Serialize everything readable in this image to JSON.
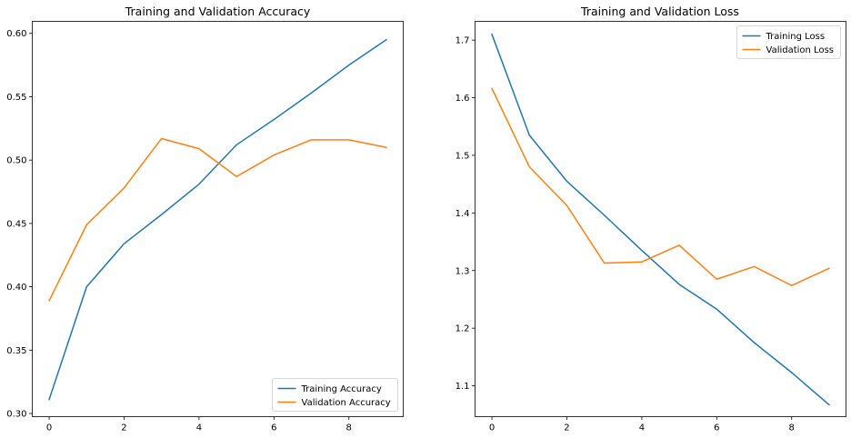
{
  "chart_data": [
    {
      "type": "line",
      "title": "Training and Validation Accuracy",
      "xlabel": "",
      "ylabel": "",
      "xlim": [
        -0.45,
        9.45
      ],
      "ylim": [
        0.2975,
        0.6095
      ],
      "xticks": [
        0,
        2,
        4,
        6,
        8
      ],
      "yticks": [
        0.3,
        0.35,
        0.4,
        0.45,
        0.5,
        0.55,
        0.6
      ],
      "ytick_labels": [
        "0.30",
        "0.35",
        "0.40",
        "0.45",
        "0.50",
        "0.55",
        "0.60"
      ],
      "grid": false,
      "legend_position": "bottom-right",
      "x": [
        0,
        1,
        2,
        3,
        4,
        5,
        6,
        7,
        8,
        9
      ],
      "series": [
        {
          "name": "Training Accuracy",
          "color": "#1f77b4",
          "values": [
            0.311,
            0.4,
            0.434,
            0.457,
            0.481,
            0.512,
            0.532,
            0.553,
            0.575,
            0.595
          ]
        },
        {
          "name": "Validation Accuracy",
          "color": "#ff7f0e",
          "values": [
            0.389,
            0.449,
            0.478,
            0.517,
            0.509,
            0.487,
            0.504,
            0.516,
            0.516,
            0.51
          ]
        }
      ]
    },
    {
      "type": "line",
      "title": "Training and Validation Loss",
      "xlabel": "",
      "ylabel": "",
      "xlim": [
        -0.45,
        9.45
      ],
      "ylim": [
        1.0465,
        1.7325
      ],
      "xticks": [
        0,
        2,
        4,
        6,
        8
      ],
      "yticks": [
        1.1,
        1.2,
        1.3,
        1.4,
        1.5,
        1.6,
        1.7
      ],
      "ytick_labels": [
        "1.1",
        "1.2",
        "1.3",
        "1.4",
        "1.5",
        "1.6",
        "1.7"
      ],
      "grid": false,
      "legend_position": "top-right",
      "x": [
        0,
        1,
        2,
        3,
        4,
        5,
        6,
        7,
        8,
        9
      ],
      "series": [
        {
          "name": "Training Loss",
          "color": "#1f77b4",
          "values": [
            1.71,
            1.535,
            1.455,
            1.396,
            1.335,
            1.276,
            1.233,
            1.175,
            1.123,
            1.067
          ]
        },
        {
          "name": "Validation Loss",
          "color": "#ff7f0e",
          "values": [
            1.616,
            1.48,
            1.413,
            1.313,
            1.315,
            1.344,
            1.285,
            1.307,
            1.274,
            1.304
          ]
        }
      ]
    }
  ]
}
